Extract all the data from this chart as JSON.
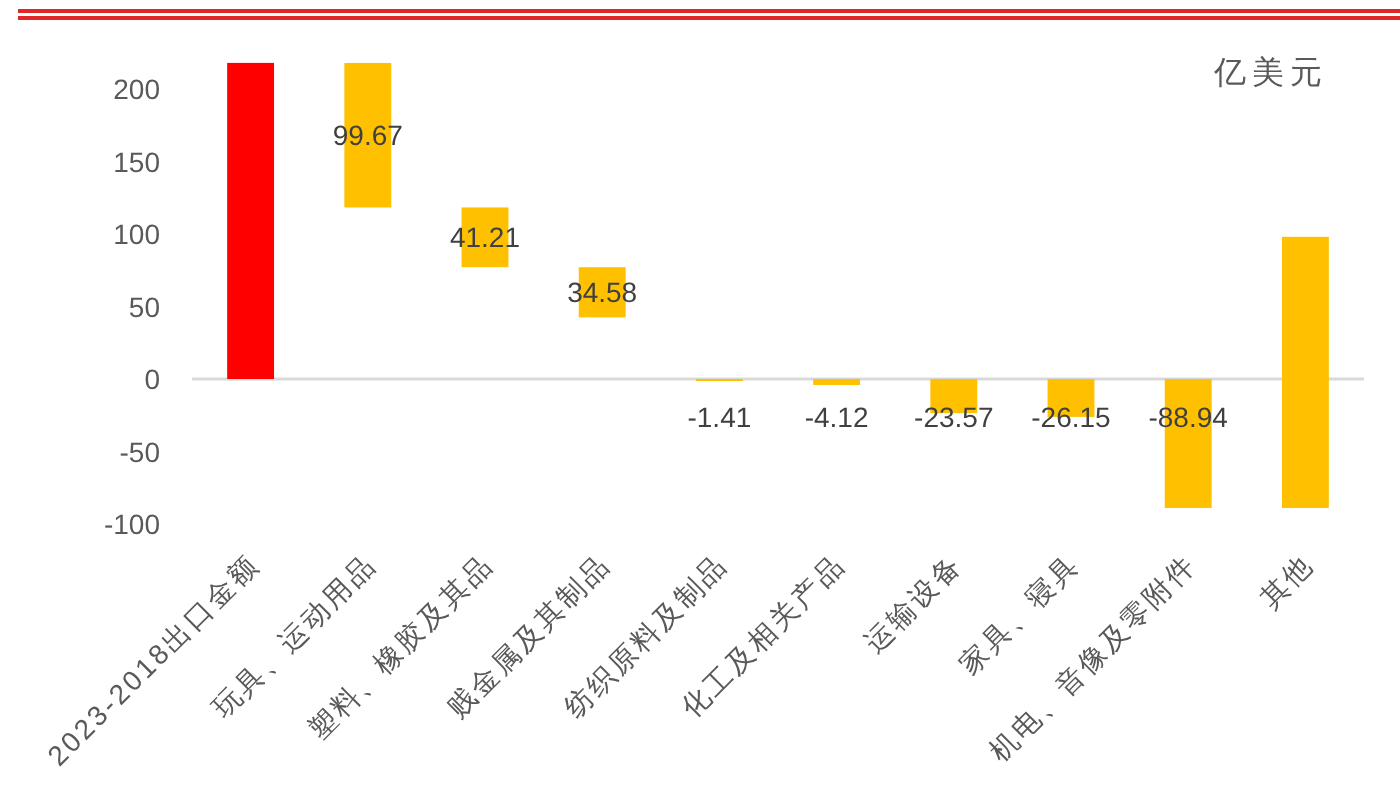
{
  "chart_data": {
    "type": "bar",
    "categories": [
      "2023-2018出口金额",
      "玩具、运动用品",
      "塑料、橡胶及其品",
      "贱金属及其制品",
      "纺织原料及制品",
      "化工及相关产品",
      "运输设备",
      "家具、寝具",
      "机电、音像及零附件",
      "其他"
    ],
    "values": [
      218,
      99.67,
      41.21,
      34.58,
      -1.41,
      -4.12,
      -23.57,
      -26.15,
      -88.94,
      187
    ],
    "base": [
      0,
      118.3,
      77.1,
      42.5,
      0,
      0,
      0,
      0,
      0,
      -88.94
    ],
    "colors": [
      "#ff0000",
      "#ffc000",
      "#ffc000",
      "#ffc000",
      "#ffc000",
      "#ffc000",
      "#ffc000",
      "#ffc000",
      "#ffc000",
      "#ffc000"
    ],
    "value_labels": [
      null,
      "99.67",
      "41.21",
      "34.58",
      "-1.41",
      "-4.12",
      "-23.57",
      "-26.15",
      "-88.94",
      null
    ],
    "ylim": [
      -100,
      220
    ],
    "yticks": [
      -100,
      -50,
      0,
      50,
      100,
      150,
      200
    ],
    "annotations": [
      "亿美元"
    ]
  }
}
